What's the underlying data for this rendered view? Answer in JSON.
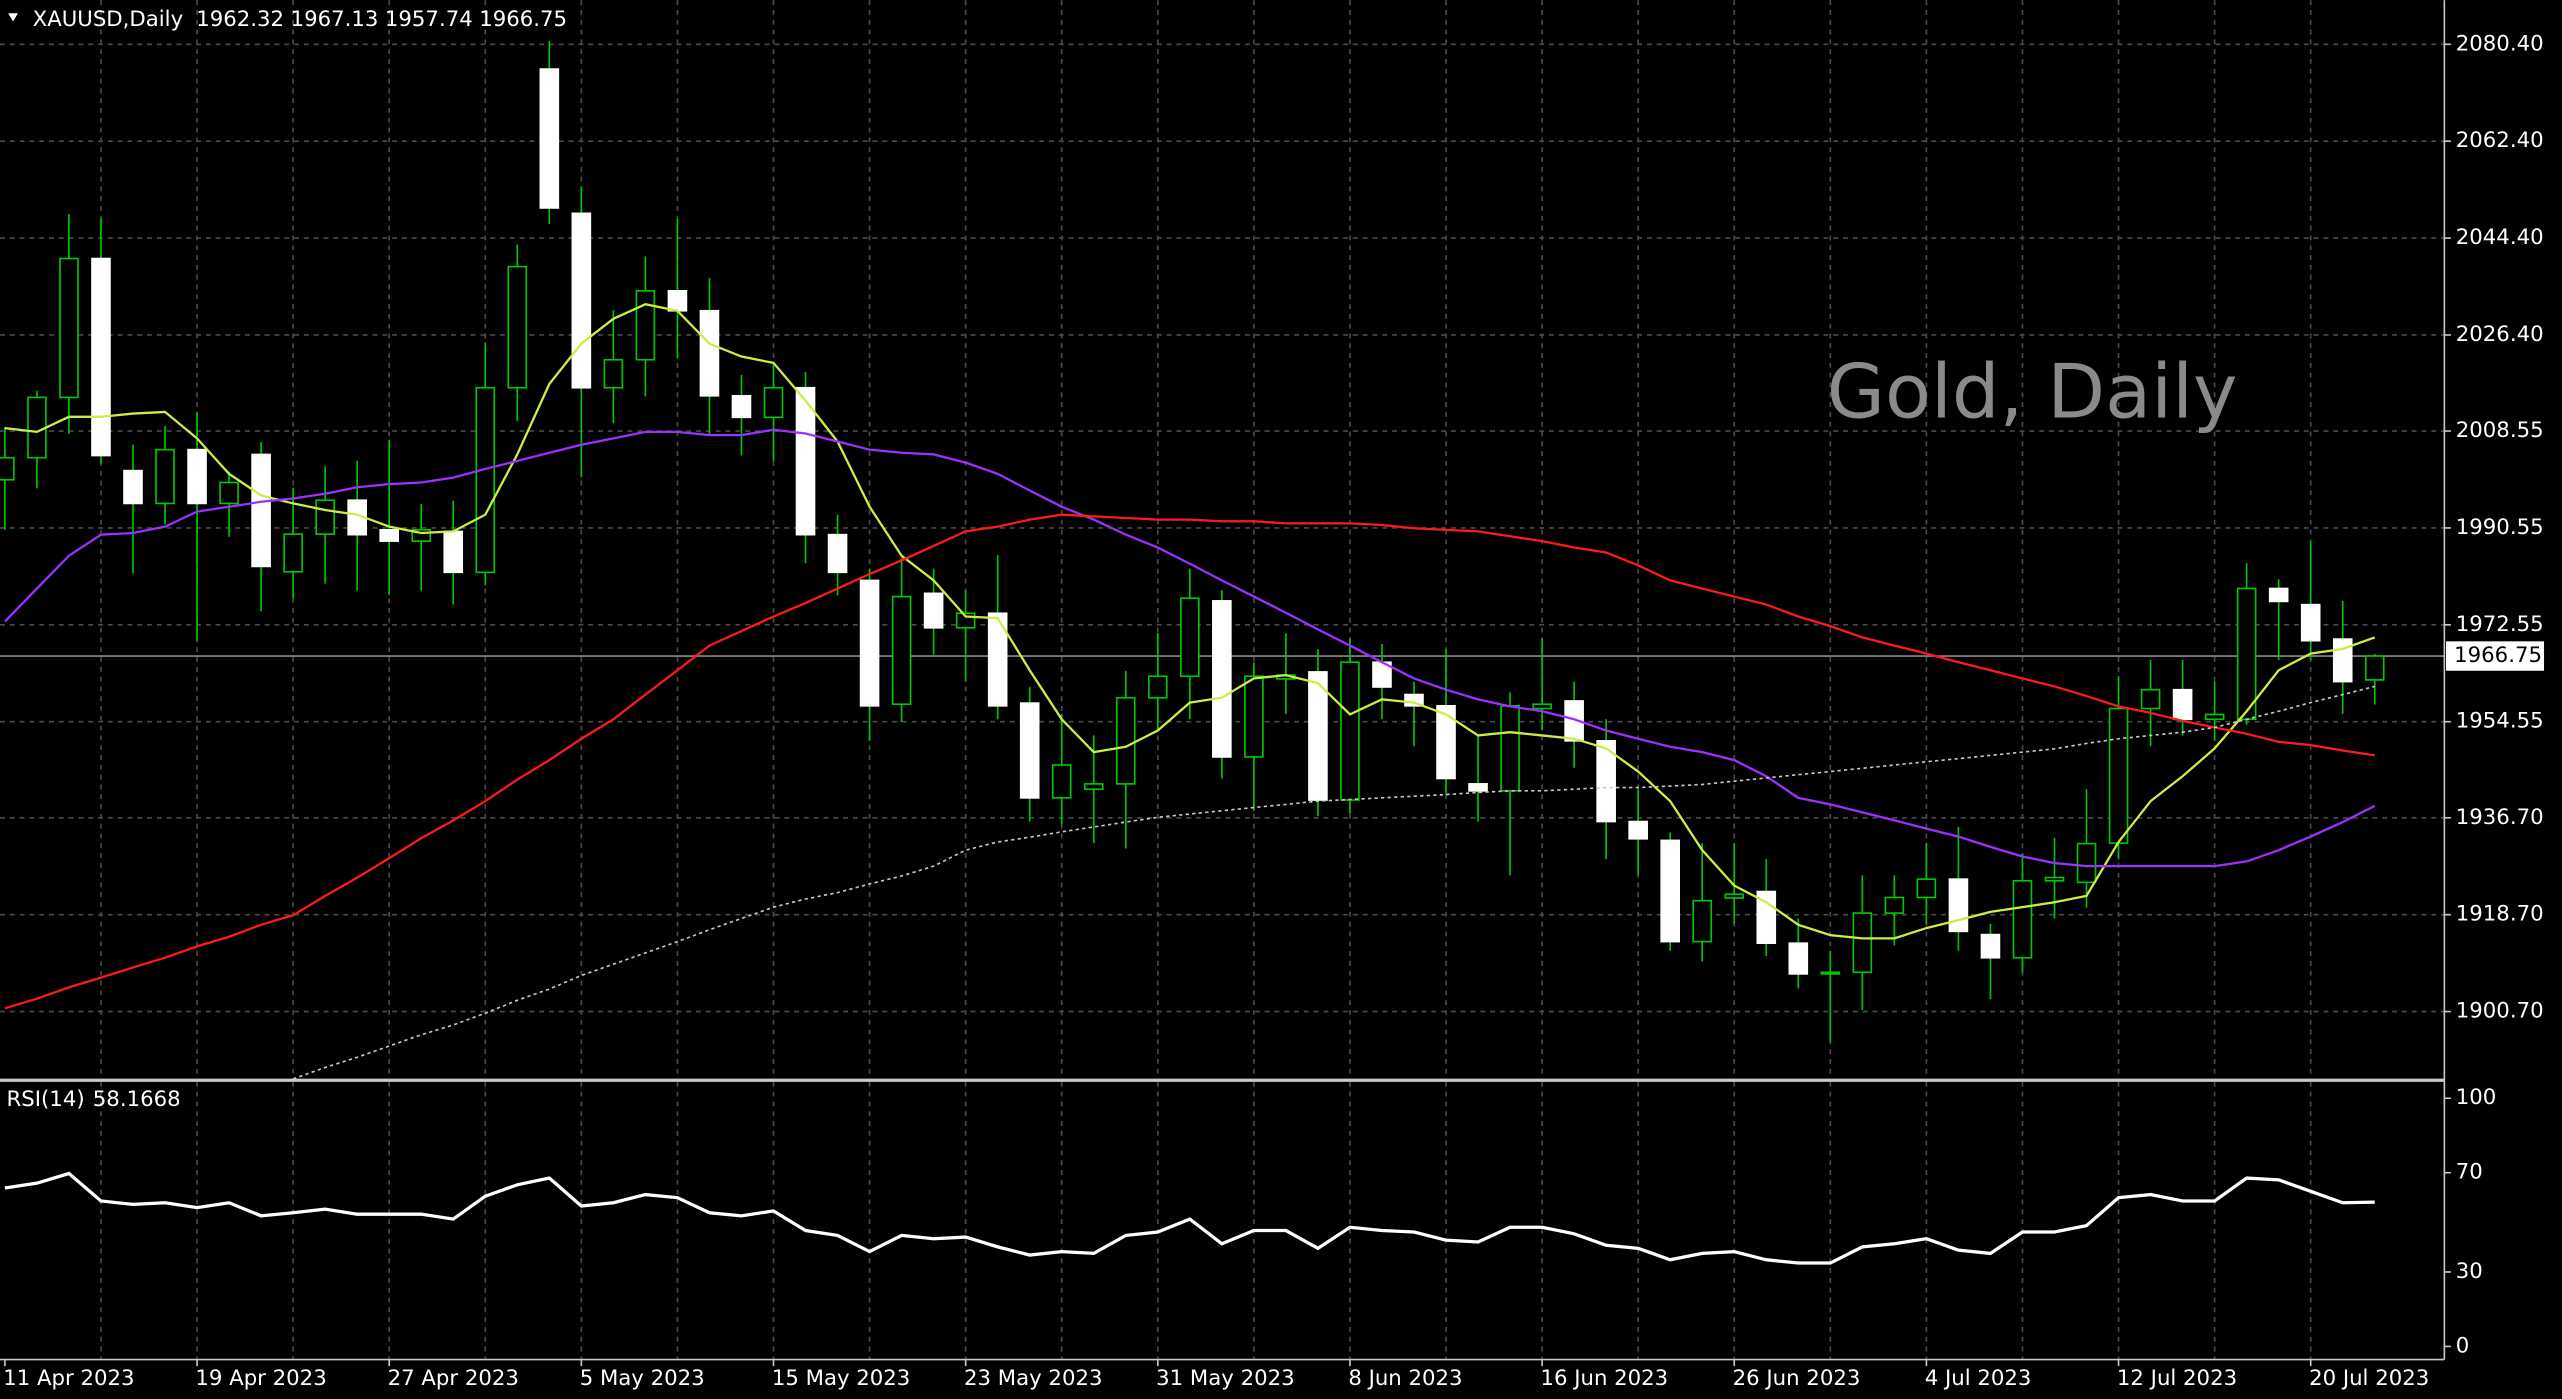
{
  "chart_data": {
    "type": "candlestick",
    "symbol": "XAUUSD,Daily",
    "watermark": "Gold, Daily",
    "categories": [
      "11 Apr 2023",
      null,
      null,
      null,
      null,
      null,
      "19 Apr 2023",
      null,
      null,
      null,
      null,
      null,
      "27 Apr 2023",
      null,
      null,
      null,
      null,
      null,
      "5 May 2023",
      null,
      null,
      null,
      null,
      null,
      "15 May 2023",
      null,
      null,
      null,
      null,
      null,
      "23 May 2023",
      null,
      null,
      null,
      null,
      null,
      "31 May 2023",
      null,
      null,
      null,
      null,
      null,
      "8 Jun 2023",
      null,
      null,
      null,
      null,
      null,
      "16 Jun 2023",
      null,
      null,
      null,
      null,
      null,
      "26 Jun 2023",
      null,
      null,
      null,
      null,
      null,
      "4 Jul 2023",
      null,
      null,
      null,
      null,
      null,
      "12 Jul 2023",
      null,
      null,
      null,
      null,
      null,
      "20 Jul 2023",
      null,
      null
    ],
    "open": [
      1999.5,
      2003.6,
      2014.8,
      2040.6,
      2001.2,
      1995.1,
      2005.1,
      1995.1,
      2004.2,
      1982.4,
      1989.4,
      1995.7,
      1990.2,
      1988.1,
      1989.9,
      1982.3,
      2016.6,
      2075.8,
      2049.0,
      2016.6,
      2021.8,
      2034.6,
      2030.9,
      2015.1,
      2011.1,
      2016.6,
      1989.3,
      1980.8,
      1957.8,
      1978.4,
      1972.0,
      1974.7,
      1958.0,
      1940.4,
      1942.0,
      1943.0,
      1959.0,
      1963.0,
      1977.0,
      1948.0,
      1962.5,
      1963.8,
      1940.0,
      1965.6,
      1959.6,
      1957.5,
      1943.0,
      1941.7,
      1957.0,
      1958.4,
      1951.0,
      1936.0,
      1932.5,
      1913.7,
      1921.8,
      1923.0,
      1913.4,
      1907.7,
      1908.0,
      1919.0,
      1921.9,
      1925.3,
      1915.0,
      1910.7,
      1925.0,
      1924.7,
      1932.0,
      1957.0,
      1960.5,
      1955.0,
      1955.0,
      1979.3,
      1976.3,
      1969.9,
      1962.32
    ],
    "high": [
      2009.3,
      2016.0,
      2048.9,
      2048.0,
      2006.0,
      2009.5,
      2012.0,
      2001.0,
      2006.5,
      1998.0,
      2002.0,
      2003.0,
      2006.9,
      1995.0,
      1995.6,
      2025.0,
      2043.2,
      2081.0,
      2054.0,
      2031.0,
      2041.0,
      2048.0,
      2037.0,
      2019.0,
      2021.0,
      2019.5,
      1993.0,
      1983.0,
      1985.0,
      1983.0,
      1979.0,
      1985.5,
      1961.0,
      1956.0,
      1952.0,
      1964.0,
      1971.0,
      1983.0,
      1979.0,
      1965.5,
      1971.0,
      1968.0,
      1970.0,
      1969.0,
      1962.0,
      1968.0,
      1952.0,
      1960.0,
      1970.0,
      1962.0,
      1955.0,
      1942.0,
      1934.0,
      1932.0,
      1932.0,
      1929.0,
      1918.0,
      1912.0,
      1926.0,
      1926.0,
      1932.0,
      1935.0,
      1917.0,
      1930.0,
      1933.0,
      1942.0,
      1963.0,
      1966.0,
      1966.0,
      1962.0,
      1984.0,
      1981.0,
      1988.0,
      1977.0,
      1967.13
    ],
    "low": [
      1990.2,
      1997.9,
      2008.0,
      2002.5,
      1982.1,
      1991.2,
      1969.6,
      1988.9,
      1975.1,
      1977.4,
      1980.2,
      1978.9,
      1978.1,
      1978.9,
      1976.3,
      1979.9,
      2010.4,
      2047.0,
      2000.0,
      2010.0,
      2015.0,
      2022.0,
      2008.0,
      2004.0,
      2003.0,
      1984.0,
      1978.0,
      1951.0,
      1954.5,
      1967.0,
      1962.0,
      1955.0,
      1936.0,
      1935.5,
      1932.0,
      1931.0,
      1953.0,
      1955.0,
      1944.0,
      1938.0,
      1956.0,
      1937.0,
      1937.5,
      1955.0,
      1950.0,
      1941.0,
      1936.0,
      1926.0,
      1953.0,
      1946.0,
      1929.0,
      1926.0,
      1912.0,
      1910.0,
      1917.0,
      1911.0,
      1905.0,
      1895.0,
      1901.0,
      1913.0,
      1917.0,
      1912.0,
      1903.0,
      1908.0,
      1918.0,
      1920.0,
      1929.0,
      1950.0,
      1952.0,
      1951.0,
      1954.0,
      1966.0,
      1966.0,
      1956.0,
      1957.74
    ],
    "close": [
      2003.6,
      2014.8,
      2040.6,
      2004.0,
      1995.1,
      2005.1,
      1995.1,
      1999.0,
      1983.4,
      1989.4,
      1995.7,
      1989.3,
      1988.1,
      1990.2,
      1982.3,
      2016.6,
      2039.1,
      2050.0,
      2016.6,
      2021.8,
      2034.6,
      2030.9,
      2015.1,
      2011.1,
      2016.6,
      1989.3,
      1982.3,
      1957.5,
      1977.8,
      1972.0,
      1974.7,
      1957.5,
      1940.4,
      1946.5,
      1943.0,
      1959.0,
      1963.0,
      1977.5,
      1948.0,
      1963.0,
      1963.2,
      1940.0,
      1965.6,
      1961.0,
      1957.5,
      1944.0,
      1941.7,
      1957.5,
      1957.8,
      1951.0,
      1936.0,
      1932.8,
      1913.7,
      1921.3,
      1922.5,
      1913.4,
      1907.7,
      1908.0,
      1919.0,
      1921.9,
      1925.3,
      1915.6,
      1910.7,
      1925.0,
      1925.6,
      1931.9,
      1957.0,
      1960.5,
      1955.0,
      1955.9,
      1979.3,
      1976.9,
      1969.6,
      1962.0,
      1966.75
    ],
    "up_color": "#000000",
    "down_color": "#ffffff",
    "wick_color": "#00c800",
    "overlays": [
      {
        "color": "#ccee44",
        "values": [
          2009.1,
          2008.4,
          2011.2,
          2011.2,
          2011.8,
          2012.1,
          2007.2,
          2000.6,
          1996.6,
          1995.1,
          1993.9,
          1993.0,
          1990.8,
          1989.6,
          1989.9,
          1993.0,
          2004.2,
          2017.3,
          2024.8,
          2029.4,
          2032.1,
          2030.9,
          2024.8,
          2022.4,
          2021.2,
          2014.2,
          2006.6,
          1994.5,
          1985.4,
          1980.8,
          1974.1,
          1973.8,
          1964.1,
          1955.0,
          1948.9,
          1949.9,
          1952.9,
          1958.1,
          1959.0,
          1962.6,
          1963.2,
          1961.7,
          1955.9,
          1958.7,
          1958.1,
          1955.9,
          1952.0,
          1952.6,
          1952.0,
          1951.4,
          1949.6,
          1945.3,
          1939.8,
          1930.7,
          1924.1,
          1921.0,
          1916.8,
          1914.9,
          1914.3,
          1914.3,
          1916.2,
          1917.7,
          1919.2,
          1920.1,
          1921.0,
          1922.2,
          1932.2,
          1939.8,
          1944.4,
          1949.6,
          1956.5,
          1964.1,
          1967.2,
          1968.1,
          1970.2
        ]
      },
      {
        "color": "#9b30ff",
        "values": [
          1973.2,
          1979.3,
          1985.4,
          1989.3,
          1989.6,
          1990.8,
          1993.6,
          1994.5,
          1995.4,
          1996.0,
          1996.9,
          1998.1,
          1998.7,
          1999.0,
          1999.9,
          2001.5,
          2003.0,
          2004.5,
          2006.0,
          2007.2,
          2008.4,
          2008.4,
          2007.8,
          2007.8,
          2008.8,
          2008.1,
          2006.6,
          2005.1,
          2004.5,
          2004.2,
          2002.7,
          2000.6,
          1997.5,
          1994.5,
          1992.1,
          1989.3,
          1986.9,
          1983.9,
          1980.8,
          1977.8,
          1974.8,
          1971.7,
          1968.7,
          1965.6,
          1962.6,
          1960.5,
          1958.7,
          1957.4,
          1956.5,
          1955.0,
          1952.9,
          1951.4,
          1949.9,
          1948.9,
          1947.4,
          1944.4,
          1940.4,
          1939.2,
          1937.7,
          1936.2,
          1934.7,
          1933.2,
          1931.3,
          1929.5,
          1928.3,
          1927.7,
          1927.7,
          1927.7,
          1927.7,
          1927.7,
          1928.6,
          1930.7,
          1933.2,
          1935.9,
          1938.9
        ]
      },
      {
        "color": "#ff1a1a",
        "values": [
          1901.3,
          1903.1,
          1905.2,
          1907.0,
          1908.9,
          1910.7,
          1912.8,
          1914.6,
          1916.8,
          1918.6,
          1922.2,
          1925.6,
          1929.2,
          1932.9,
          1936.2,
          1939.8,
          1943.8,
          1947.4,
          1951.4,
          1955.0,
          1959.6,
          1964.1,
          1968.7,
          1971.4,
          1974.1,
          1976.6,
          1979.3,
          1982.0,
          1984.5,
          1987.2,
          1989.9,
          1990.8,
          1992.1,
          1993.0,
          1992.7,
          1992.4,
          1992.1,
          1992.1,
          1991.8,
          1991.8,
          1991.4,
          1991.4,
          1991.4,
          1991.1,
          1990.5,
          1990.2,
          1989.9,
          1989.0,
          1988.1,
          1986.9,
          1986.0,
          1983.6,
          1980.8,
          1979.3,
          1977.8,
          1976.3,
          1974.1,
          1972.3,
          1970.2,
          1968.7,
          1967.2,
          1965.6,
          1964.1,
          1962.6,
          1961.1,
          1959.3,
          1957.4,
          1956.2,
          1954.7,
          1953.5,
          1952.3,
          1950.8,
          1950.2,
          1949.2,
          1948.3
        ]
      },
      {
        "color": "#c8c8c8",
        "style": "dotted",
        "values": [
          null,
          null,
          null,
          null,
          null,
          null,
          null,
          null,
          null,
          1888.2,
          1890.3,
          1892.2,
          1894.3,
          1896.4,
          1898.2,
          1900.4,
          1902.8,
          1904.9,
          1907.4,
          1909.5,
          1911.6,
          1913.7,
          1915.9,
          1918.0,
          1920.1,
          1921.6,
          1922.8,
          1924.4,
          1925.9,
          1927.7,
          1930.7,
          1932.2,
          1933.1,
          1934.1,
          1935.0,
          1935.9,
          1936.8,
          1937.4,
          1938.0,
          1938.6,
          1939.2,
          1939.8,
          1940.1,
          1940.4,
          1940.7,
          1941.0,
          1941.4,
          1941.7,
          1941.7,
          1942.0,
          1942.3,
          1942.3,
          1942.6,
          1942.9,
          1943.5,
          1944.1,
          1944.7,
          1945.3,
          1945.9,
          1946.5,
          1947.1,
          1947.7,
          1948.3,
          1948.9,
          1949.5,
          1950.5,
          1951.4,
          1952.0,
          1952.6,
          1953.5,
          1955.0,
          1956.5,
          1958.1,
          1959.6,
          1961.1
        ]
      }
    ],
    "ylim": [
      1888.25,
      2088.6
    ],
    "yticks": [
      {
        "value": 2080.4,
        "label": "2080.40"
      },
      {
        "value": 2062.4,
        "label": "2062.40"
      },
      {
        "value": 2044.4,
        "label": "2044.40"
      },
      {
        "value": 2026.4,
        "label": "2026.40"
      },
      {
        "value": 2008.55,
        "label": "2008.55"
      },
      {
        "value": 1990.55,
        "label": "1990.55"
      },
      {
        "value": 1972.55,
        "label": "1972.55"
      },
      {
        "value": 1954.55,
        "label": "1954.55"
      },
      {
        "value": 1936.7,
        "label": "1936.70"
      },
      {
        "value": 1918.7,
        "label": "1918.70"
      },
      {
        "value": 1900.7,
        "label": "1900.70"
      }
    ],
    "grid": true,
    "rsi": {
      "label": "RSI(14)",
      "color": "#ffffff",
      "ylim": [
        -5.3,
        106.6
      ],
      "yticks": [
        100,
        70,
        30,
        0
      ],
      "values": [
        63.8,
        65.8,
        69.7,
        58.6,
        57.2,
        57.9,
        55.9,
        57.9,
        52.6,
        53.9,
        55.3,
        53.3,
        53.3,
        53.3,
        51.3,
        60.5,
        65.1,
        67.8,
        56.6,
        57.9,
        61.2,
        59.9,
        53.9,
        52.6,
        54.6,
        46.7,
        44.7,
        38.2,
        44.7,
        43.4,
        44.1,
        40.1,
        36.8,
        38.2,
        37.5,
        44.7,
        46.1,
        51.3,
        41.4,
        46.7,
        46.7,
        39.5,
        48.0,
        46.7,
        46.1,
        42.8,
        42.1,
        48.0,
        48.0,
        45.4,
        40.8,
        39.5,
        34.9,
        37.5,
        38.2,
        34.9,
        33.6,
        33.6,
        40.1,
        41.4,
        43.4,
        38.8,
        37.5,
        46.1,
        46.1,
        48.7,
        59.9,
        61.2,
        58.6,
        58.6,
        67.8,
        67.1,
        62.5,
        57.9,
        58.1668
      ]
    }
  }
}
